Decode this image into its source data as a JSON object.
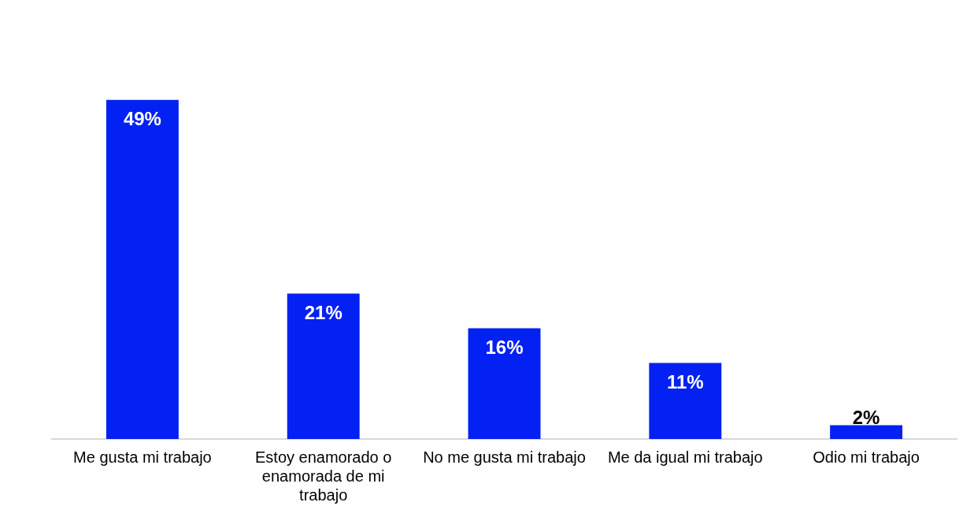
{
  "chart_data": {
    "type": "bar",
    "categories": [
      "Me gusta mi trabajo",
      "Estoy enamorado o enamorada de mi trabajo",
      "No me gusta mi trabajo",
      "Me da igual mi trabajo",
      "Odio mi trabajo"
    ],
    "values": [
      49,
      21,
      16,
      11,
      2
    ],
    "value_labels": [
      "49%",
      "21%",
      "16%",
      "11%",
      "2%"
    ],
    "color": "#0321f2",
    "grid": false,
    "legend": false
  }
}
